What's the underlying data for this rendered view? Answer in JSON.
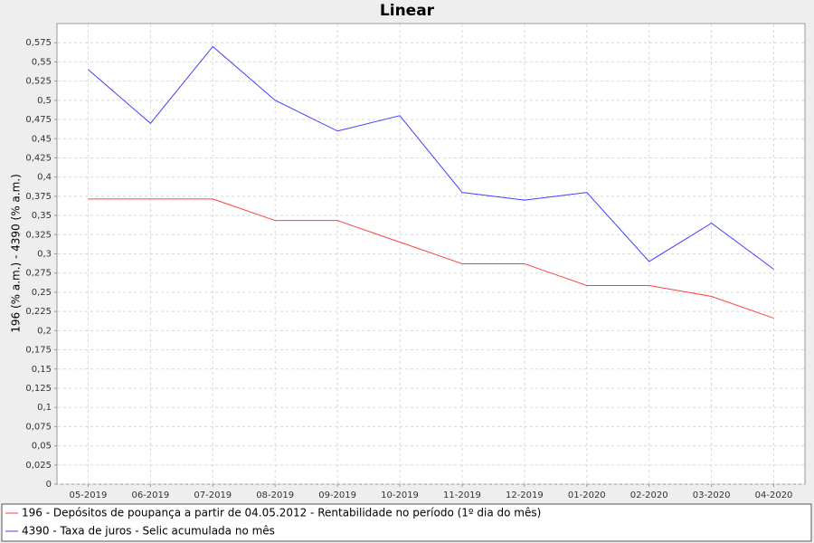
{
  "chart_data": {
    "type": "line",
    "title": "Linear",
    "y_label": "196 (% a.m.) - 4390 (% a.m.)",
    "categories": [
      "05-2019",
      "06-2019",
      "07-2019",
      "08-2019",
      "09-2019",
      "10-2019",
      "11-2019",
      "12-2019",
      "01-2020",
      "02-2020",
      "03-2020",
      "04-2020"
    ],
    "series": [
      {
        "name": "196 - Depósitos de poupança a partir de 04.05.2012 - Rentabilidade no período (1º dia do mês)",
        "color": "#ff4040",
        "values": [
          0.3715,
          0.3715,
          0.3715,
          0.3434,
          0.3434,
          0.3153,
          0.2871,
          0.2871,
          0.2588,
          0.2588,
          0.2446,
          0.2162
        ]
      },
      {
        "name": "4390 - Taxa de juros - Selic acumulada no mês",
        "color": "#4040ff",
        "values": [
          0.54,
          0.47,
          0.57,
          0.5,
          0.46,
          0.48,
          0.38,
          0.37,
          0.38,
          0.29,
          0.34,
          0.28
        ]
      }
    ],
    "ylim": [
      0,
      0.6
    ],
    "yticks": [
      0,
      {
        "value": 0.025,
        "label": "0,025"
      },
      {
        "value": 0.05,
        "label": "0,05"
      },
      {
        "value": 0.075,
        "label": "0,075"
      },
      {
        "value": 0.1,
        "label": "0,1"
      },
      {
        "value": 0.125,
        "label": "0,125"
      },
      {
        "value": 0.15,
        "label": "0,15"
      },
      {
        "value": 0.175,
        "label": "0,175"
      },
      {
        "value": 0.2,
        "label": "0,2"
      },
      {
        "value": 0.225,
        "label": "0,225"
      },
      {
        "value": 0.25,
        "label": "0,25"
      },
      {
        "value": 0.275,
        "label": "0,275"
      },
      {
        "value": 0.3,
        "label": "0,3"
      },
      {
        "value": 0.325,
        "label": "0,325"
      },
      {
        "value": 0.35,
        "label": "0,35"
      },
      {
        "value": 0.375,
        "label": "0,375"
      },
      {
        "value": 0.4,
        "label": "0,4"
      },
      {
        "value": 0.425,
        "label": "0,425"
      },
      {
        "value": 0.45,
        "label": "0,45"
      },
      {
        "value": 0.475,
        "label": "0,475"
      },
      {
        "value": 0.5,
        "label": "0,5"
      },
      {
        "value": 0.525,
        "label": "0,525"
      },
      {
        "value": 0.55,
        "label": "0,55"
      },
      {
        "value": 0.575,
        "label": "0,575"
      }
    ],
    "grid": true
  }
}
